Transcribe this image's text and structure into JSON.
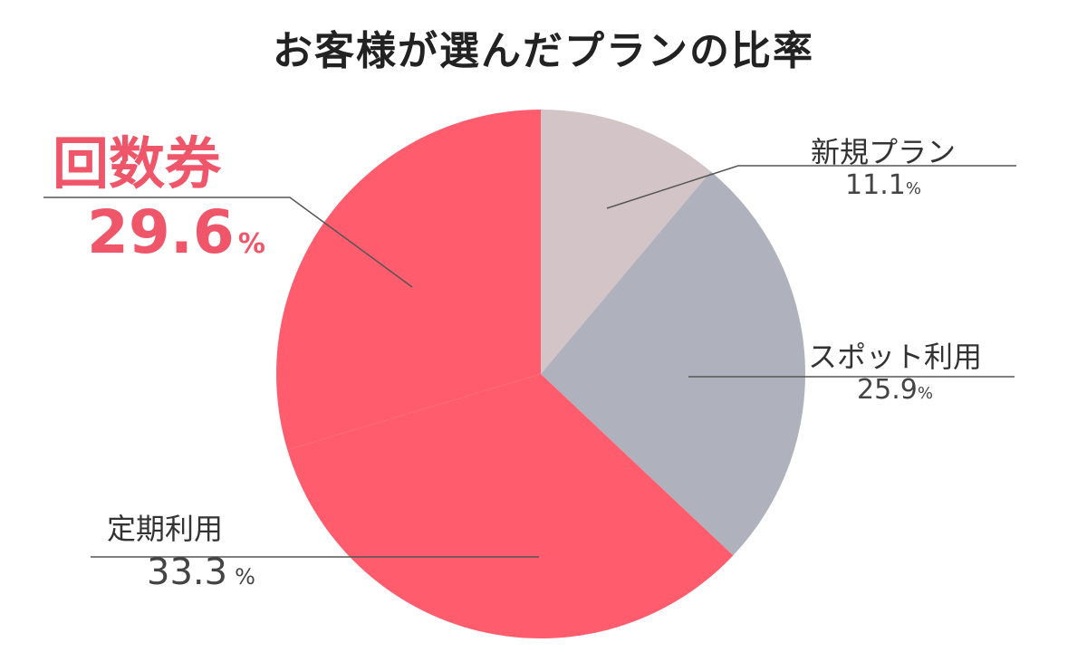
{
  "chart_data": {
    "type": "pie",
    "title": "お客様が選んだプランの比率",
    "unit": "%",
    "slices": [
      {
        "name": "新規プラン",
        "value": 11.1,
        "color": "#D3C5C7"
      },
      {
        "name": "スポット利用",
        "value": 25.9,
        "color": "#AFB2BC"
      },
      {
        "name": "定期利用",
        "value": 33.3,
        "color": "#FF5C6E"
      },
      {
        "name": "回数券",
        "value": 29.6,
        "color": "#FF5C6E",
        "highlight": true,
        "label_color": "#F0566A"
      }
    ]
  }
}
